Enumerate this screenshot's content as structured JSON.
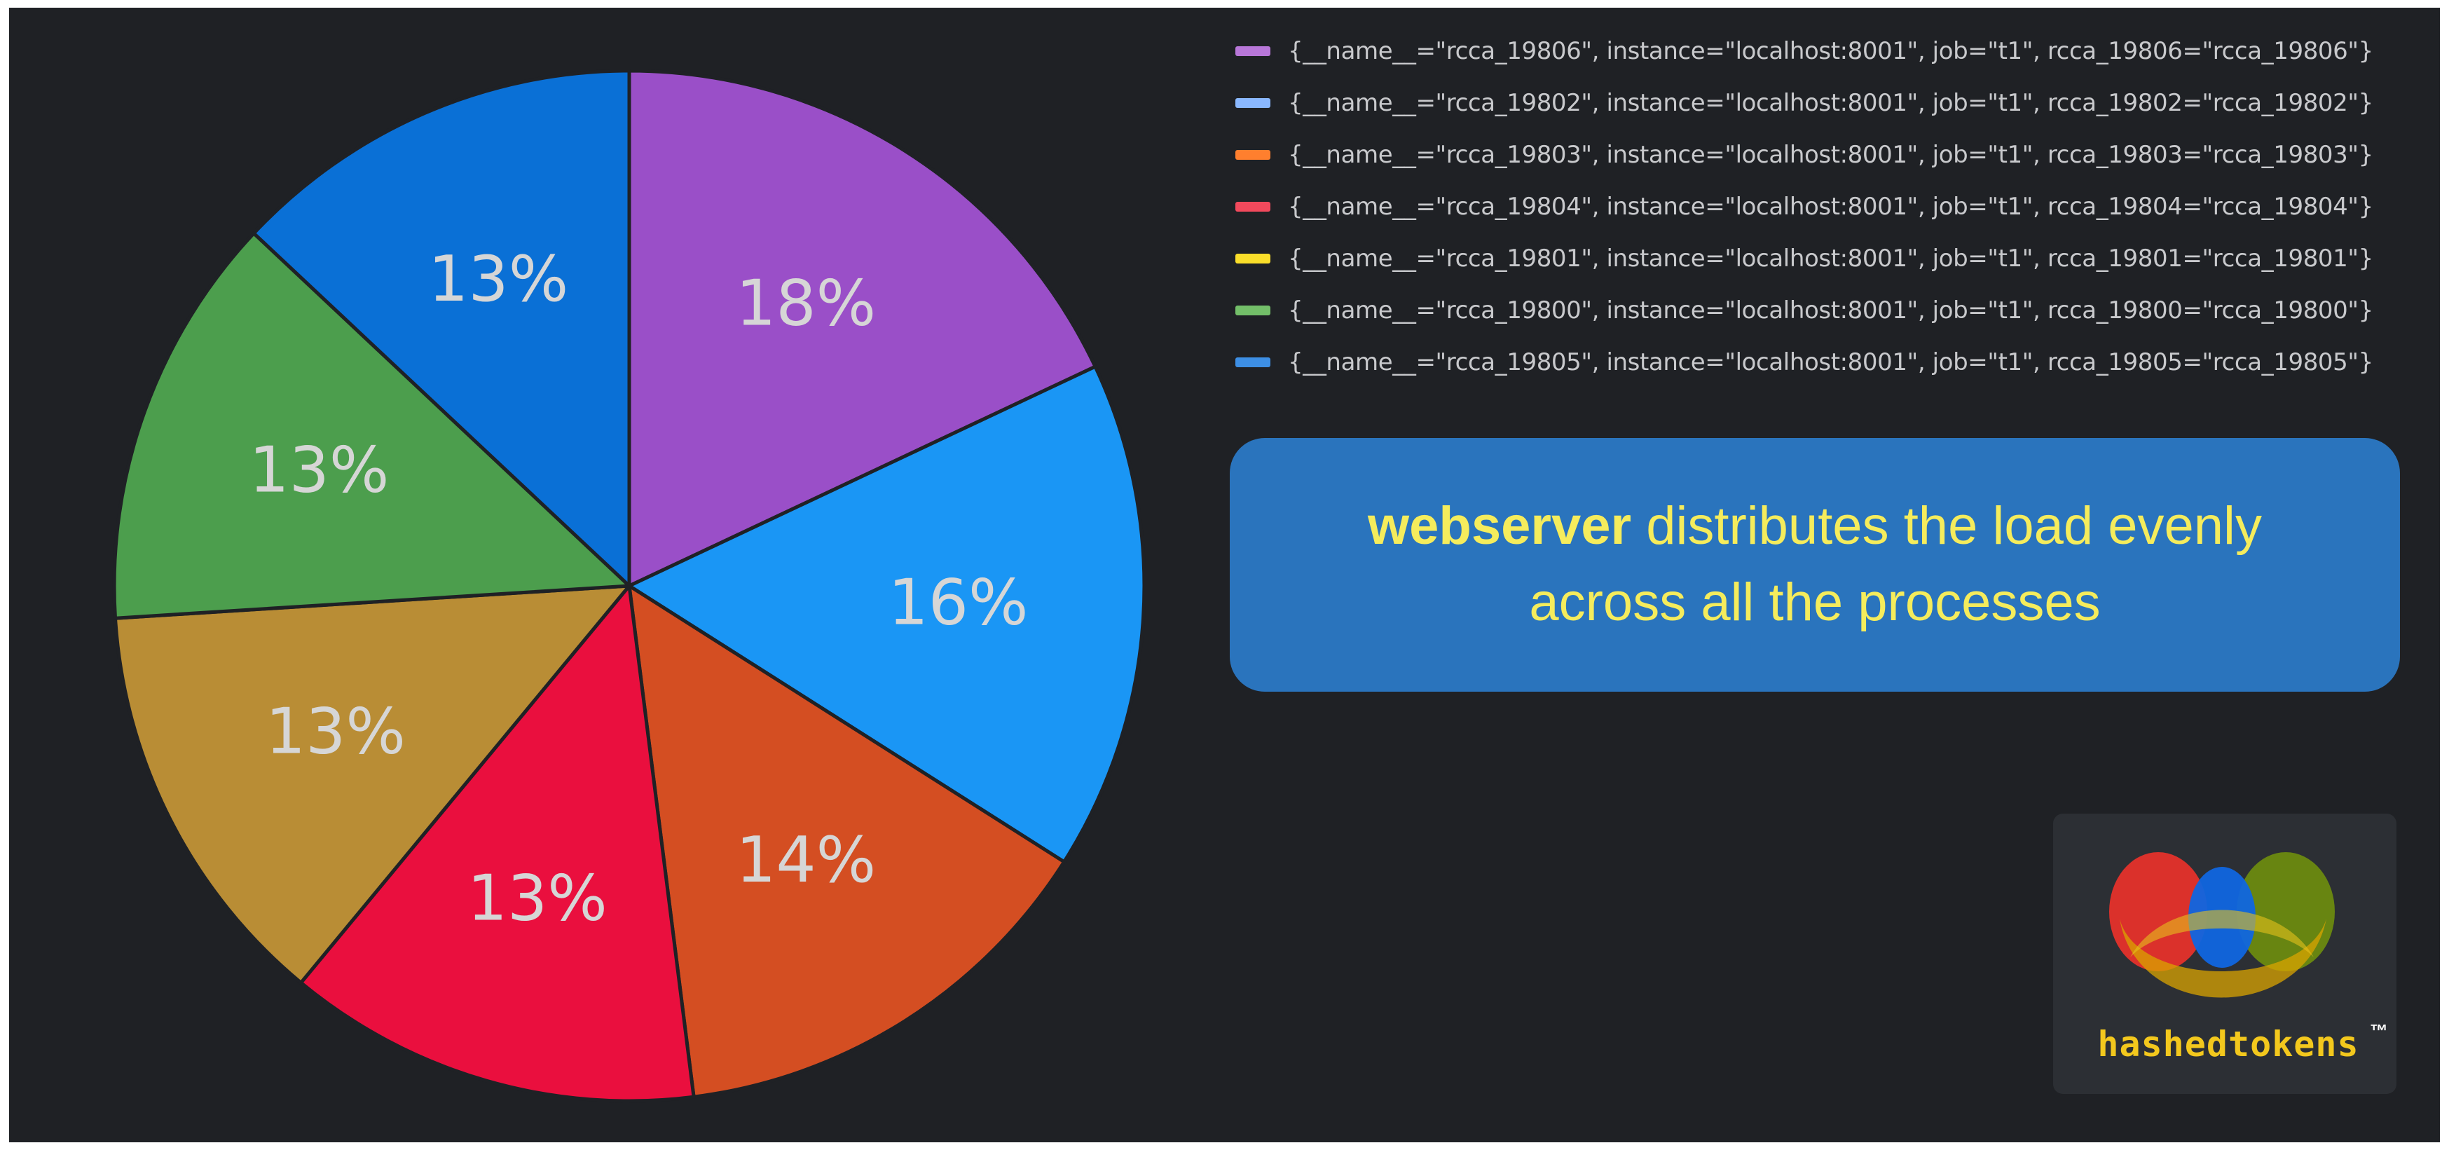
{
  "chart_data": {
    "type": "pie",
    "slices": [
      {
        "label": "{__name__=\"rcca_19806\", instance=\"localhost:8001\", job=\"t1\", rcca_19806=\"rcca_19806\"}",
        "value": 18,
        "display": "18%",
        "color": "#9a4fc8"
      },
      {
        "label": "{__name__=\"rcca_19802\", instance=\"localhost:8001\", job=\"t1\", rcca_19802=\"rcca_19802\"}",
        "value": 16,
        "display": "16%",
        "color": "#1a96f5"
      },
      {
        "label": "{__name__=\"rcca_19803\", instance=\"localhost:8001\", job=\"t1\", rcca_19803=\"rcca_19803\"}",
        "value": 14,
        "display": "14%",
        "color": "#d44e22"
      },
      {
        "label": "{__name__=\"rcca_19804\", instance=\"localhost:8001\", job=\"t1\", rcca_19804=\"rcca_19804\"}",
        "value": 13,
        "display": "13%",
        "color": "#ea0f3e"
      },
      {
        "label": "{__name__=\"rcca_19801\", instance=\"localhost:8001\", job=\"t1\", rcca_19801=\"rcca_19801\"}",
        "value": 13,
        "display": "13%",
        "color": "#b98d35"
      },
      {
        "label": "{__name__=\"rcca_19800\", instance=\"localhost:8001\", job=\"t1\", rcca_19800=\"rcca_19800\"}",
        "value": 13,
        "display": "13%",
        "color": "#4c9e4d"
      },
      {
        "label": "{__name__=\"rcca_19805\", instance=\"localhost:8001\", job=\"t1\", rcca_19805=\"rcca_19805\"}",
        "value": 13,
        "display": "13%",
        "color": "#0a70d6"
      }
    ],
    "legend_order": [
      0,
      1,
      2,
      3,
      4,
      5,
      6
    ],
    "legend_swatch_colors": [
      "#b877d9",
      "#8ab8ff",
      "#ff7f2e",
      "#f2495c",
      "#fade2a",
      "#73bf69",
      "#3d8fe5"
    ],
    "legend_position": "right"
  },
  "callout": {
    "bold": "webserver",
    "line1_rest": " distributes the load evenly",
    "line2": "across all the processes"
  },
  "logo": {
    "wordmark": "hashedtokens",
    "trademark": "™"
  },
  "colors": {
    "background": "#1f2125",
    "callout_bg": "#2a74bd",
    "callout_text": "#f5ec5c"
  }
}
